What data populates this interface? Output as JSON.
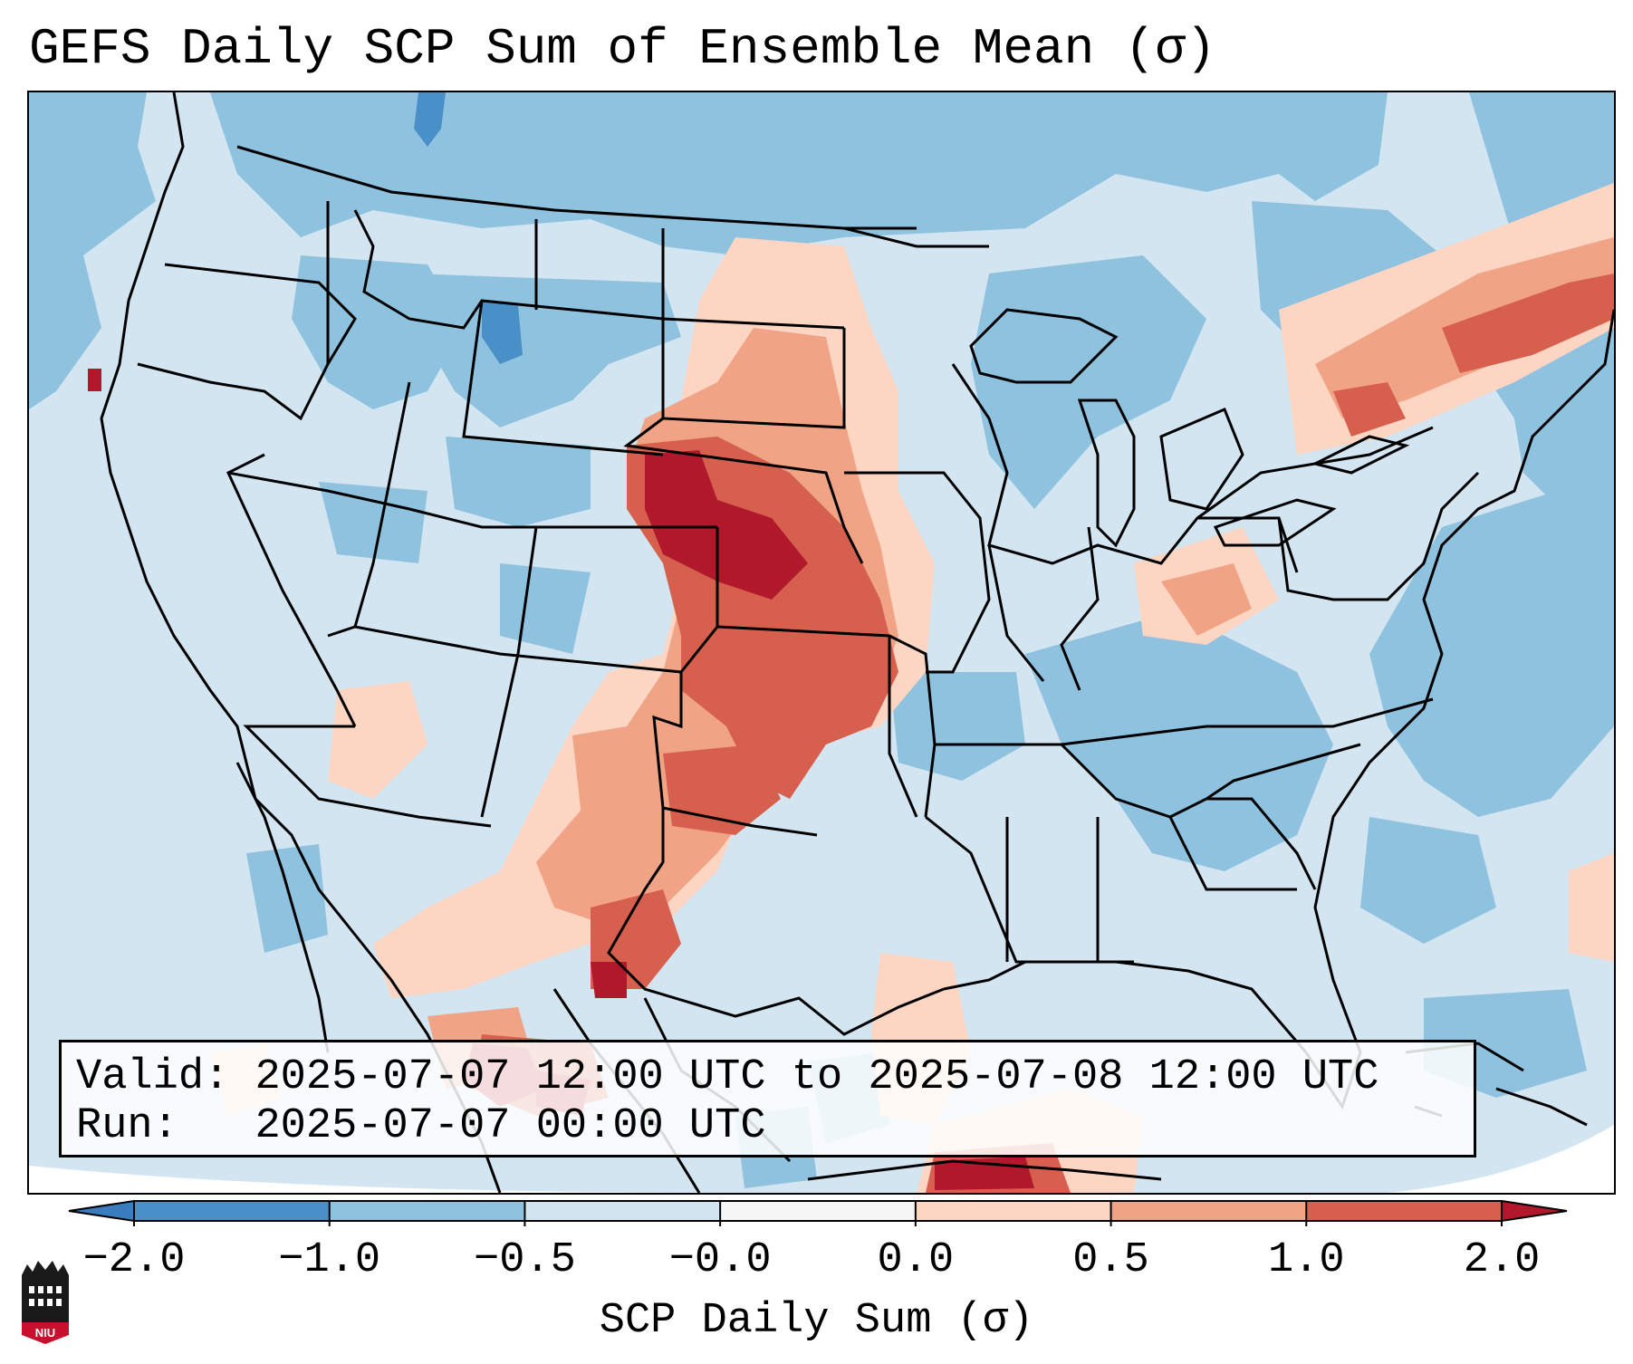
{
  "title": "GEFS Daily SCP Sum of Ensemble Mean (σ)",
  "info": {
    "valid_label": "Valid:",
    "valid_value": "2025-07-07 12:00 UTC to 2025-07-08 12:00 UTC",
    "run_label": "Run:",
    "run_value": "2025-07-07 00:00 UTC"
  },
  "colorbar": {
    "label": "SCP Daily Sum (σ)",
    "ticks": [
      "−2.0",
      "−1.0",
      "−0.5",
      "−0.0",
      "0.0",
      "0.5",
      "1.0",
      "2.0"
    ],
    "bins": [
      {
        "range": "< -2.0",
        "color": "#3a7dbf"
      },
      {
        "range": "-2.0 to -1.0",
        "color": "#4a90c8"
      },
      {
        "range": "-1.0 to -0.5",
        "color": "#8fc2df"
      },
      {
        "range": "-0.5 to -0.0",
        "color": "#d2e5f0"
      },
      {
        "range": "-0.0 to 0.0",
        "color": "#f6f6f6"
      },
      {
        "range": "0.0 to 0.5",
        "color": "#fcd6c3"
      },
      {
        "range": "0.5 to 1.0",
        "color": "#f1a386"
      },
      {
        "range": "1.0 to 2.0",
        "color": "#d6604d"
      },
      {
        "range": "> 2.0",
        "color": "#b2182b"
      }
    ]
  },
  "map_fields": {
    "background": "#d2e5f0",
    "regions": [
      {
        "name": "pacific-northwest-offshore",
        "level": -0.75
      },
      {
        "name": "canada-north",
        "level": -0.75
      },
      {
        "name": "montana-wyoming",
        "level": -0.75
      },
      {
        "name": "great-lakes-canada",
        "level": -0.75
      },
      {
        "name": "atlantic-offshore",
        "level": -0.75
      },
      {
        "name": "southeast-us",
        "level": -0.75
      },
      {
        "name": "northern-plains",
        "level": 1.5
      },
      {
        "name": "nebraska-core",
        "level": 2.5
      },
      {
        "name": "kansas-oklahoma",
        "level": 1.5
      },
      {
        "name": "texas-new-mexico",
        "level": 1.0
      },
      {
        "name": "northern-mexico",
        "level": 2.5
      },
      {
        "name": "gulf-south",
        "level": 0.3
      },
      {
        "name": "caribbean-south",
        "level": 2.5
      },
      {
        "name": "northeast-ridge",
        "level": 1.2
      },
      {
        "name": "ohio-valley",
        "level": 0.8
      },
      {
        "name": "california-coast-spot",
        "level": 2.5
      }
    ]
  },
  "logo": {
    "text": "NIU",
    "color": "#c8102e"
  }
}
